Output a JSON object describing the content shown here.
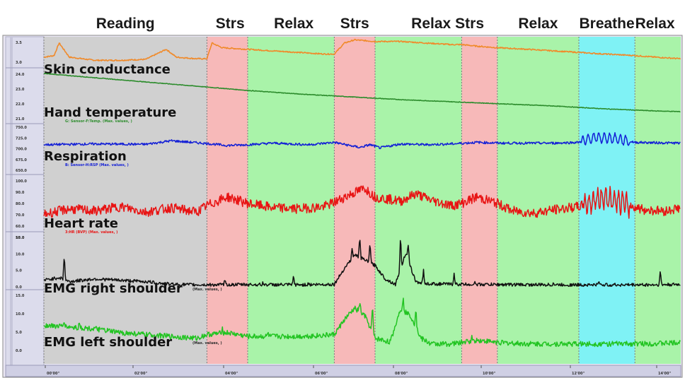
{
  "colors": {
    "reading": "#d0d0d0",
    "stress": "#f7b9b9",
    "relax": "#a9f3a9",
    "breathe": "#7ff2f5",
    "skin_conductance": "#f08a2a",
    "hand_temperature": "#2c8c2c",
    "respiration": "#1420d6",
    "heart_rate": "#e81414",
    "emg_right": "#111111",
    "emg_left": "#22c422"
  },
  "chart_data": {
    "type": "line",
    "phases": [
      {
        "label": "Reading",
        "kind": "reading",
        "start": 0,
        "end": 3.2
      },
      {
        "label": "Strs",
        "kind": "stress",
        "start": 3.2,
        "end": 4.0
      },
      {
        "label": "Relax",
        "kind": "relax",
        "start": 4.0,
        "end": 5.7
      },
      {
        "label": "Strs",
        "kind": "stress",
        "start": 5.7,
        "end": 6.5
      },
      {
        "label": "Relax",
        "kind": "relax",
        "start": 6.5,
        "end": 8.2
      },
      {
        "label": "Strs",
        "kind": "stress",
        "start": 8.2,
        "end": 8.9
      },
      {
        "label": "Relax",
        "kind": "relax",
        "start": 8.9,
        "end": 10.5
      },
      {
        "label": "Breathe",
        "kind": "breathe",
        "start": 10.5,
        "end": 11.6
      },
      {
        "label": "Relax",
        "kind": "relax",
        "start": 11.6,
        "end": 12.5
      }
    ],
    "x_ticks": [
      "00'00\"",
      "02'00\"",
      "04'00\"",
      "06'00\"",
      "08'00\"",
      "10'00\"",
      "12'00\"",
      "14'00\""
    ],
    "series": [
      {
        "name": "Skin conductance",
        "color_key": "skin_conductance",
        "ticks": [
          "3.5",
          "3.0"
        ],
        "sensor_label": "",
        "ylim": [
          2.8,
          3.7
        ],
        "points": [
          [
            0,
            3.05
          ],
          [
            0.2,
            3.1
          ],
          [
            0.3,
            3.5
          ],
          [
            0.5,
            3.05
          ],
          [
            1.0,
            2.95
          ],
          [
            1.5,
            2.95
          ],
          [
            2.0,
            2.98
          ],
          [
            2.4,
            3.3
          ],
          [
            2.6,
            3.05
          ],
          [
            3.0,
            3.0
          ],
          [
            3.2,
            3.0
          ],
          [
            3.3,
            3.5
          ],
          [
            3.5,
            3.35
          ],
          [
            4.0,
            3.3
          ],
          [
            4.5,
            3.25
          ],
          [
            5.0,
            3.2
          ],
          [
            5.5,
            3.15
          ],
          [
            5.7,
            3.15
          ],
          [
            5.9,
            3.5
          ],
          [
            6.1,
            3.6
          ],
          [
            6.5,
            3.55
          ],
          [
            7.0,
            3.55
          ],
          [
            7.5,
            3.5
          ],
          [
            8.0,
            3.45
          ],
          [
            8.2,
            3.45
          ],
          [
            8.5,
            3.4
          ],
          [
            8.9,
            3.35
          ],
          [
            9.5,
            3.3
          ],
          [
            10.0,
            3.25
          ],
          [
            10.5,
            3.2
          ],
          [
            11.0,
            3.15
          ],
          [
            11.6,
            3.1
          ],
          [
            12.0,
            3.05
          ],
          [
            12.5,
            3.0
          ]
        ]
      },
      {
        "name": "Hand temperature",
        "color_key": "hand_temperature",
        "ticks": [
          "24.0",
          "23.0",
          "22.0",
          "21.0"
        ],
        "sensor_label": "G: Sensor-F:Temp. (Max. values, )",
        "ylim": [
          20.6,
          24.2
        ],
        "points": [
          [
            0,
            24.0
          ],
          [
            1,
            23.7
          ],
          [
            2,
            23.4
          ],
          [
            3,
            23.1
          ],
          [
            4,
            22.8
          ],
          [
            5,
            22.55
          ],
          [
            6,
            22.35
          ],
          [
            7,
            22.15
          ],
          [
            8,
            22.0
          ],
          [
            9,
            21.85
          ],
          [
            10,
            21.7
          ],
          [
            11,
            21.5
          ],
          [
            12,
            21.35
          ],
          [
            12.5,
            21.3
          ]
        ]
      },
      {
        "name": "Respiration",
        "color_key": "respiration",
        "ticks": [
          "750.0",
          "725.0",
          "700.0",
          "675.0",
          "650.0"
        ],
        "sensor_label": "B: Sensor-H:RSP (Max. values, )",
        "ylim": [
          640,
          760
        ],
        "points": [
          [
            0,
            712
          ],
          [
            1,
            714
          ],
          [
            2,
            713
          ],
          [
            2.5,
            722
          ],
          [
            3.2,
            715
          ],
          [
            3.6,
            710
          ],
          [
            4.0,
            712
          ],
          [
            4.5,
            716
          ],
          [
            5.2,
            712
          ],
          [
            5.7,
            718
          ],
          [
            6.0,
            710
          ],
          [
            6.2,
            705
          ],
          [
            6.4,
            712
          ],
          [
            6.6,
            704
          ],
          [
            7.0,
            714
          ],
          [
            7.5,
            712
          ],
          [
            8.0,
            714
          ],
          [
            8.5,
            718
          ],
          [
            9.0,
            716
          ],
          [
            10.0,
            716
          ],
          [
            10.5,
            718
          ],
          [
            10.8,
            730
          ],
          [
            11.2,
            728
          ],
          [
            11.6,
            718
          ],
          [
            12.0,
            717
          ],
          [
            12.5,
            716
          ]
        ],
        "oscillation": {
          "from": 10.55,
          "to": 11.5,
          "amplitude": 12,
          "cycles": 9
        }
      },
      {
        "name": "Heart rate",
        "color_key": "heart_rate",
        "ticks": [
          "100.0",
          "90.0",
          "80.0",
          "70.0",
          "60.0",
          "50.0"
        ],
        "sensor_label": "3:HR (BVP) (Max. values, )",
        "ylim": [
          48,
          108
        ],
        "points": [
          [
            0,
            72
          ],
          [
            0.5,
            77
          ],
          [
            1.0,
            75
          ],
          [
            1.5,
            79
          ],
          [
            2.0,
            74
          ],
          [
            2.5,
            78
          ],
          [
            3.0,
            74
          ],
          [
            3.2,
            80
          ],
          [
            3.6,
            88
          ],
          [
            4.0,
            82
          ],
          [
            4.5,
            78
          ],
          [
            5.0,
            77
          ],
          [
            5.5,
            79
          ],
          [
            5.7,
            83
          ],
          [
            6.0,
            90
          ],
          [
            6.3,
            96
          ],
          [
            6.5,
            88
          ],
          [
            7.0,
            84
          ],
          [
            7.3,
            91
          ],
          [
            7.6,
            85
          ],
          [
            8.0,
            80
          ],
          [
            8.2,
            82
          ],
          [
            8.5,
            88
          ],
          [
            8.9,
            82
          ],
          [
            9.2,
            75
          ],
          [
            9.6,
            73
          ],
          [
            10.0,
            76
          ],
          [
            10.5,
            79
          ],
          [
            11.0,
            88
          ],
          [
            11.5,
            80
          ],
          [
            11.8,
            76
          ],
          [
            12.2,
            75
          ],
          [
            12.5,
            78
          ]
        ],
        "oscillation": {
          "from": 10.6,
          "to": 11.5,
          "amplitude": 9,
          "cycles": 11
        }
      },
      {
        "name": "EMG right shoulder",
        "color_key": "emg_right",
        "ticks": [
          "15.0",
          "10.0",
          "5.0",
          "0.0"
        ],
        "sensor_label": "(Max. values, )",
        "ylim": [
          -1,
          20
        ],
        "points": [
          [
            0,
            2.5
          ],
          [
            0.3,
            3.5
          ],
          [
            0.5,
            2.0
          ],
          [
            1.0,
            3.0
          ],
          [
            1.5,
            2.5
          ],
          [
            2.0,
            2.0
          ],
          [
            2.5,
            1.0
          ],
          [
            3.0,
            0.8
          ],
          [
            3.2,
            0.8
          ],
          [
            4.0,
            0.9
          ],
          [
            5.0,
            0.8
          ],
          [
            5.7,
            1.0
          ],
          [
            5.9,
            7.0
          ],
          [
            6.1,
            12.0
          ],
          [
            6.3,
            10.0
          ],
          [
            6.5,
            8.0
          ],
          [
            6.7,
            3.0
          ],
          [
            6.9,
            1.0
          ],
          [
            7.1,
            12.5
          ],
          [
            7.3,
            2.0
          ],
          [
            7.5,
            1.2
          ],
          [
            8.2,
            1.0
          ],
          [
            9.0,
            0.9
          ],
          [
            10.0,
            0.8
          ],
          [
            11.0,
            0.8
          ],
          [
            12.0,
            0.8
          ],
          [
            12.5,
            0.9
          ]
        ],
        "spikes": [
          [
            0.4,
            12.0
          ],
          [
            2.55,
            1.2
          ],
          [
            3.55,
            2.5
          ],
          [
            4.3,
            1.5
          ],
          [
            4.9,
            4.0
          ],
          [
            5.2,
            1.5
          ],
          [
            6.05,
            14.0
          ],
          [
            6.2,
            19.0
          ],
          [
            6.4,
            17.0
          ],
          [
            7.0,
            19.0
          ],
          [
            7.15,
            16.0
          ],
          [
            7.45,
            6.5
          ],
          [
            8.05,
            5.0
          ],
          [
            8.45,
            1.8
          ],
          [
            10.0,
            1.5
          ],
          [
            10.9,
            2.2
          ],
          [
            12.1,
            6.0
          ]
        ]
      },
      {
        "name": "EMG left shoulder",
        "color_key": "emg_left",
        "ticks": [
          "15.0",
          "10.0",
          "5.0",
          "0.0"
        ],
        "sensor_label": "(Max. values, )",
        "ylim": [
          -1,
          16
        ],
        "points": [
          [
            0,
            6.5
          ],
          [
            0.5,
            6.0
          ],
          [
            1.0,
            5.5
          ],
          [
            1.5,
            4.5
          ],
          [
            2.0,
            4.0
          ],
          [
            2.5,
            3.5
          ],
          [
            3.0,
            3.0
          ],
          [
            3.2,
            4.0
          ],
          [
            3.6,
            4.5
          ],
          [
            4.0,
            3.5
          ],
          [
            4.5,
            3.5
          ],
          [
            5.0,
            3.5
          ],
          [
            5.5,
            3.8
          ],
          [
            5.7,
            4.0
          ],
          [
            5.9,
            8.0
          ],
          [
            6.1,
            11.0
          ],
          [
            6.3,
            9.0
          ],
          [
            6.5,
            3.0
          ],
          [
            6.8,
            2.0
          ],
          [
            7.0,
            11.0
          ],
          [
            7.2,
            9.0
          ],
          [
            7.4,
            3.0
          ],
          [
            7.6,
            1.5
          ],
          [
            8.0,
            1.5
          ],
          [
            8.5,
            2.5
          ],
          [
            9.0,
            1.8
          ],
          [
            9.5,
            1.5
          ],
          [
            10.0,
            1.5
          ],
          [
            11.0,
            1.5
          ],
          [
            12.0,
            1.6
          ],
          [
            12.5,
            1.8
          ]
        ],
        "spikes": [
          [
            0.4,
            8.0
          ],
          [
            0.7,
            7.5
          ],
          [
            3.5,
            6.0
          ],
          [
            4.4,
            4.5
          ],
          [
            6.2,
            13.0
          ],
          [
            6.45,
            12.0
          ],
          [
            7.05,
            14.0
          ],
          [
            7.3,
            11.5
          ],
          [
            8.4,
            3.2
          ]
        ]
      }
    ]
  }
}
